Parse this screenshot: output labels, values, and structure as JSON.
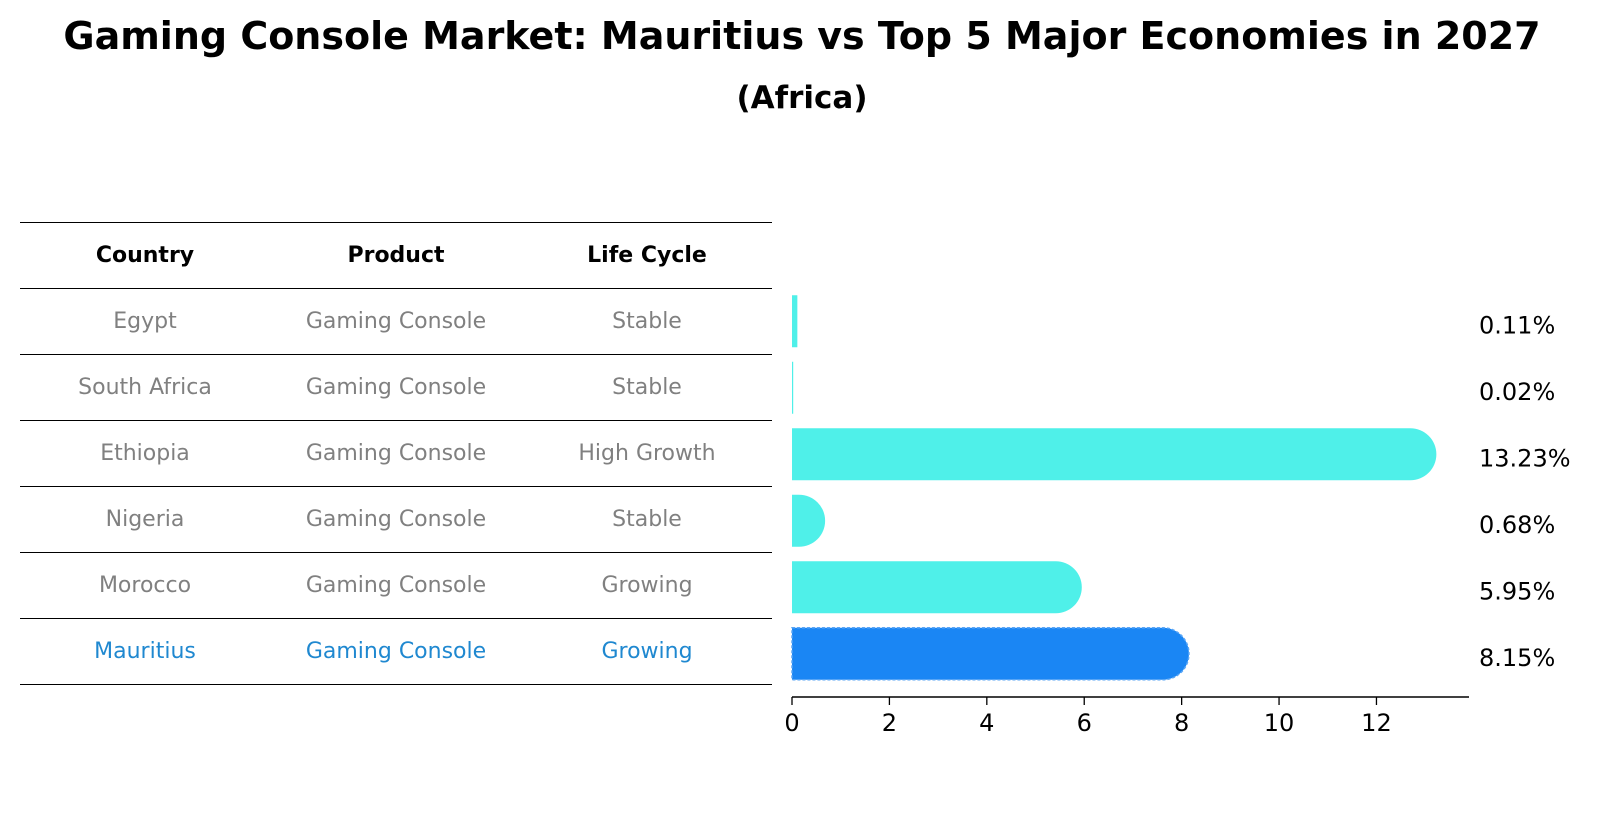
{
  "header": {
    "title": "Gaming Console Market: Mauritius vs Top 5 Major Economies in 2027",
    "subtitle": "(Africa)"
  },
  "table": {
    "columns": [
      "Country",
      "Product",
      "Life Cycle"
    ],
    "rows": [
      {
        "country": "Egypt",
        "product": "Gaming Console",
        "life_cycle": "Stable"
      },
      {
        "country": "South Africa",
        "product": "Gaming Console",
        "life_cycle": "Stable"
      },
      {
        "country": "Ethiopia",
        "product": "Gaming Console",
        "life_cycle": "High Growth"
      },
      {
        "country": "Nigeria",
        "product": "Gaming Console",
        "life_cycle": "Stable"
      },
      {
        "country": "Morocco",
        "product": "Gaming Console",
        "life_cycle": "Growing"
      },
      {
        "country": "Mauritius",
        "product": "Gaming Console",
        "life_cycle": "Growing"
      }
    ],
    "highlight_row": "Mauritius"
  },
  "colors": {
    "bar": "#4ff0e9",
    "highlight_bar": "#1a86f4",
    "dim_text": "#808080",
    "highlight_text": "#1f88d0"
  },
  "chart_data": {
    "type": "bar",
    "orientation": "horizontal",
    "categories": [
      "Egypt",
      "South Africa",
      "Ethiopia",
      "Nigeria",
      "Morocco",
      "Mauritius"
    ],
    "values": [
      0.11,
      0.02,
      13.23,
      0.68,
      5.95,
      8.15
    ],
    "value_labels": [
      "0.11%",
      "0.02%",
      "13.23%",
      "0.68%",
      "5.95%",
      "8.15%"
    ],
    "highlight": "Mauritius",
    "xlim": [
      0,
      13.9
    ],
    "xticks": [
      0,
      2,
      4,
      6,
      8,
      10,
      12
    ],
    "xlabel": "",
    "ylabel": "",
    "grid": false
  }
}
